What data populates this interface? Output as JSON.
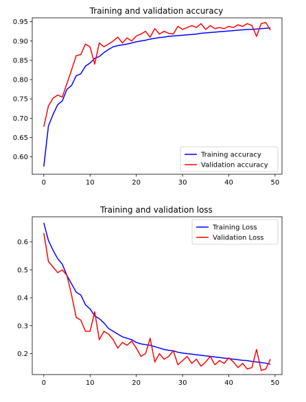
{
  "chart_data": [
    {
      "type": "line",
      "title": "Training and validation accuracy",
      "xlabel": "",
      "ylabel": "",
      "xlim": [
        -2.5,
        51.5
      ],
      "ylim": [
        0.555,
        0.96
      ],
      "xticks": [
        0,
        10,
        20,
        30,
        40,
        50
      ],
      "yticks": [
        0.6,
        0.65,
        0.7,
        0.75,
        0.8,
        0.85,
        0.9,
        0.95
      ],
      "ytick_labels": [
        "0.60",
        "0.65",
        "0.70",
        "0.75",
        "0.80",
        "0.85",
        "0.90",
        "0.95"
      ],
      "grid": false,
      "legend": "lower-right",
      "x": [
        0,
        1,
        2,
        3,
        4,
        5,
        6,
        7,
        8,
        9,
        10,
        11,
        12,
        13,
        14,
        15,
        16,
        17,
        18,
        19,
        20,
        21,
        22,
        23,
        24,
        25,
        26,
        27,
        28,
        29,
        30,
        31,
        32,
        33,
        34,
        35,
        36,
        37,
        38,
        39,
        40,
        41,
        42,
        43,
        44,
        45,
        46,
        47,
        48,
        49
      ],
      "series": [
        {
          "name": "Training accuracy",
          "color": "#0000ff",
          "values": [
            0.575,
            0.68,
            0.71,
            0.735,
            0.745,
            0.775,
            0.785,
            0.81,
            0.815,
            0.835,
            0.843,
            0.855,
            0.86,
            0.87,
            0.878,
            0.885,
            0.888,
            0.89,
            0.892,
            0.895,
            0.898,
            0.9,
            0.902,
            0.905,
            0.907,
            0.909,
            0.91,
            0.912,
            0.913,
            0.914,
            0.915,
            0.916,
            0.917,
            0.918,
            0.92,
            0.921,
            0.922,
            0.923,
            0.924,
            0.925,
            0.926,
            0.927,
            0.928,
            0.929,
            0.93,
            0.93,
            0.931,
            0.932,
            0.933,
            0.934
          ]
        },
        {
          "name": "Validation accuracy",
          "color": "#ff0000",
          "values": [
            0.678,
            0.732,
            0.752,
            0.76,
            0.755,
            0.79,
            0.825,
            0.862,
            0.865,
            0.892,
            0.885,
            0.84,
            0.895,
            0.885,
            0.892,
            0.9,
            0.91,
            0.895,
            0.908,
            0.9,
            0.913,
            0.918,
            0.925,
            0.91,
            0.932,
            0.918,
            0.925,
            0.92,
            0.918,
            0.938,
            0.93,
            0.935,
            0.94,
            0.935,
            0.945,
            0.93,
            0.94,
            0.932,
            0.935,
            0.932,
            0.938,
            0.935,
            0.942,
            0.938,
            0.945,
            0.94,
            0.912,
            0.945,
            0.948,
            0.928
          ]
        }
      ]
    },
    {
      "type": "line",
      "title": "Training and validation loss",
      "xlabel": "",
      "ylabel": "",
      "xlim": [
        -2.5,
        51.5
      ],
      "ylim": [
        0.125,
        0.69
      ],
      "xticks": [
        0,
        10,
        20,
        30,
        40,
        50
      ],
      "yticks": [
        0.2,
        0.3,
        0.4,
        0.5,
        0.6
      ],
      "ytick_labels": [
        "0.2",
        "0.3",
        "0.4",
        "0.5",
        "0.6"
      ],
      "grid": false,
      "legend": "upper-right",
      "x": [
        0,
        1,
        2,
        3,
        4,
        5,
        6,
        7,
        8,
        9,
        10,
        11,
        12,
        13,
        14,
        15,
        16,
        17,
        18,
        19,
        20,
        21,
        22,
        23,
        24,
        25,
        26,
        27,
        28,
        29,
        30,
        31,
        32,
        33,
        34,
        35,
        36,
        37,
        38,
        39,
        40,
        41,
        42,
        43,
        44,
        45,
        46,
        47,
        48,
        49
      ],
      "series": [
        {
          "name": "Training Loss",
          "color": "#0000ff",
          "values": [
            0.668,
            0.605,
            0.57,
            0.54,
            0.52,
            0.48,
            0.45,
            0.42,
            0.41,
            0.375,
            0.36,
            0.335,
            0.325,
            0.31,
            0.29,
            0.28,
            0.27,
            0.26,
            0.255,
            0.25,
            0.24,
            0.235,
            0.232,
            0.23,
            0.225,
            0.22,
            0.215,
            0.212,
            0.21,
            0.205,
            0.202,
            0.2,
            0.198,
            0.196,
            0.194,
            0.192,
            0.19,
            0.188,
            0.186,
            0.184,
            0.182,
            0.18,
            0.178,
            0.176,
            0.175,
            0.172,
            0.17,
            0.168,
            0.166,
            0.162
          ]
        },
        {
          "name": "Validation Loss",
          "color": "#ff0000",
          "values": [
            0.632,
            0.53,
            0.51,
            0.49,
            0.5,
            0.48,
            0.41,
            0.33,
            0.32,
            0.28,
            0.28,
            0.35,
            0.25,
            0.28,
            0.27,
            0.25,
            0.22,
            0.24,
            0.23,
            0.245,
            0.22,
            0.19,
            0.2,
            0.255,
            0.17,
            0.2,
            0.18,
            0.19,
            0.21,
            0.16,
            0.175,
            0.19,
            0.165,
            0.18,
            0.155,
            0.17,
            0.19,
            0.16,
            0.175,
            0.165,
            0.185,
            0.17,
            0.15,
            0.165,
            0.145,
            0.15,
            0.215,
            0.14,
            0.145,
            0.18
          ]
        }
      ]
    }
  ]
}
